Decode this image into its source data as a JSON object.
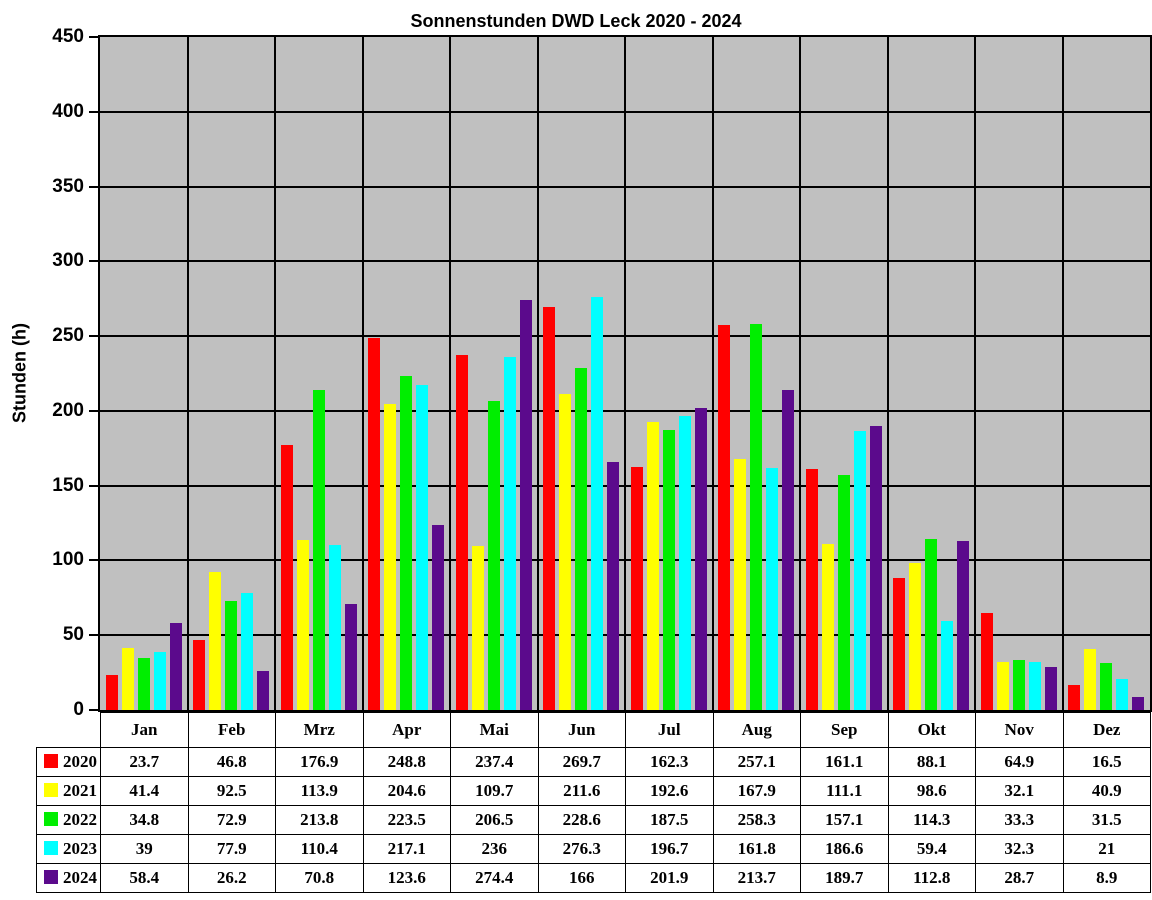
{
  "chart_data": {
    "type": "bar",
    "title": "Sonnenstunden DWD Leck 2020 - 2024",
    "ylabel": "Stunden (h)",
    "ylim": [
      0,
      450
    ],
    "ytick_step": 50,
    "grid": "horizontal gridlines each 50, vertical separators between months",
    "legend_position": "table rows below chart, left column",
    "plot_bg_color": "#C0C0C0",
    "gridline_color": "#000000",
    "categories": [
      "Jan",
      "Feb",
      "Mrz",
      "Apr",
      "Mai",
      "Jun",
      "Jul",
      "Aug",
      "Sep",
      "Okt",
      "Nov",
      "Dez"
    ],
    "series": [
      {
        "name": "2020",
        "color": "#FF0000",
        "values": [
          23.7,
          46.8,
          176.9,
          248.8,
          237.4,
          269.7,
          162.3,
          257.1,
          161.1,
          88.1,
          64.9,
          16.5
        ]
      },
      {
        "name": "2021",
        "color": "#FFFF00",
        "values": [
          41.4,
          92.5,
          113.9,
          204.6,
          109.7,
          211.6,
          192.6,
          167.9,
          111.1,
          98.6,
          32.1,
          40.9
        ]
      },
      {
        "name": "2022",
        "color": "#00EE00",
        "values": [
          34.8,
          72.9,
          213.8,
          223.5,
          206.5,
          228.6,
          187.5,
          258.3,
          157.1,
          114.3,
          33.3,
          31.5
        ]
      },
      {
        "name": "2023",
        "color": "#00FFFF",
        "values": [
          39,
          77.9,
          110.4,
          217.1,
          236,
          276.3,
          196.7,
          161.8,
          186.6,
          59.4,
          32.3,
          21
        ]
      },
      {
        "name": "2024",
        "color": "#5B0A8C",
        "values": [
          58.4,
          26.2,
          70.8,
          123.6,
          274.4,
          166,
          201.9,
          213.7,
          189.7,
          112.8,
          28.7,
          8.9
        ]
      }
    ]
  }
}
